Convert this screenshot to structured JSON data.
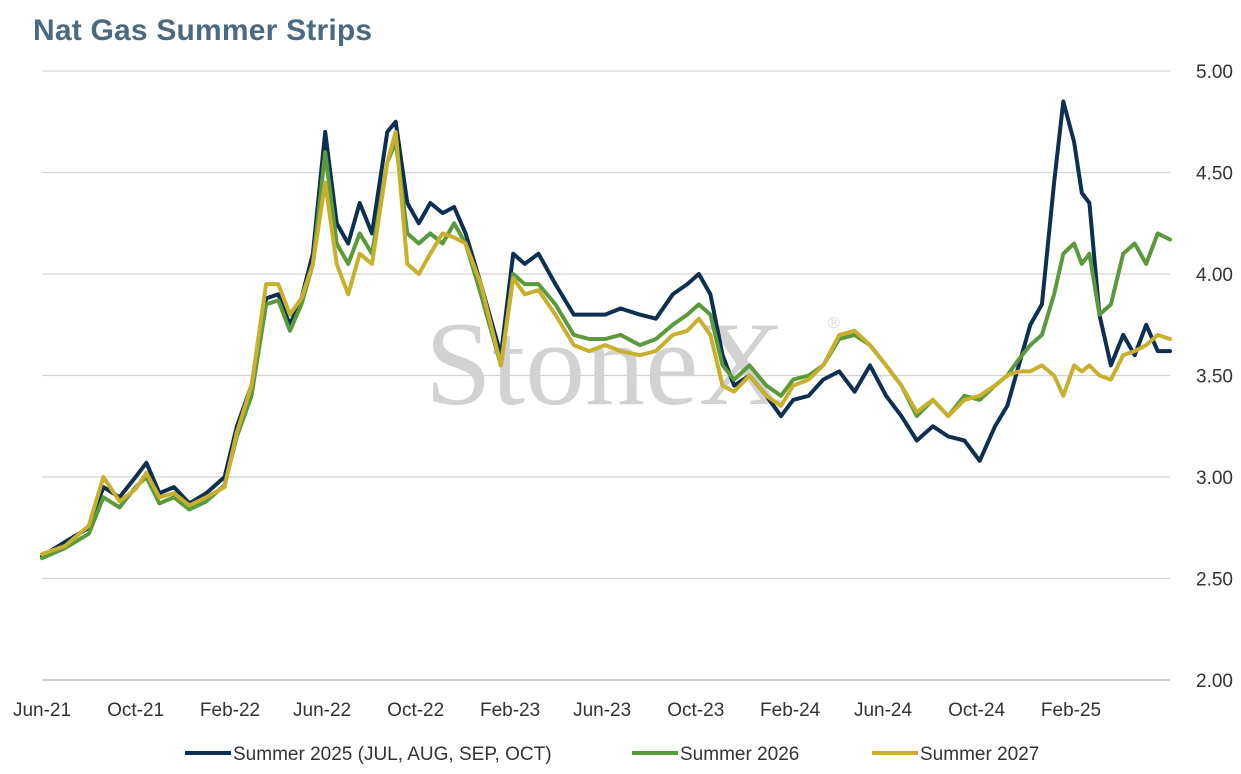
{
  "chart_data": {
    "type": "line",
    "title": "Nat Gas Summer Strips",
    "xlabel": "",
    "ylabel": "",
    "x_range": [
      "2021-06-01",
      "2025-06-10"
    ],
    "ylim": [
      2.0,
      5.0
    ],
    "y_ticks": [
      "2.00",
      "2.50",
      "3.00",
      "3.50",
      "4.00",
      "4.50",
      "5.00"
    ],
    "x_ticks": [
      {
        "date": "2021-06-01",
        "label": "Jun-21"
      },
      {
        "date": "2021-10-01",
        "label": "Oct-21"
      },
      {
        "date": "2022-02-01",
        "label": "Feb-22"
      },
      {
        "date": "2022-06-01",
        "label": "Jun-22"
      },
      {
        "date": "2022-10-01",
        "label": "Oct-22"
      },
      {
        "date": "2023-02-01",
        "label": "Feb-23"
      },
      {
        "date": "2023-06-01",
        "label": "Jun-23"
      },
      {
        "date": "2023-10-01",
        "label": "Oct-23"
      },
      {
        "date": "2024-02-01",
        "label": "Feb-24"
      },
      {
        "date": "2024-06-01",
        "label": "Jun-24"
      },
      {
        "date": "2024-10-01",
        "label": "Oct-24"
      },
      {
        "date": "2025-02-01",
        "label": "Feb-25"
      }
    ],
    "grid": "horizontal",
    "y_axis_position": "right",
    "legend_position": "bottom",
    "watermark": "StoneX",
    "watermark_mark": "®",
    "series": [
      {
        "name": "Summer 2025 (JUL, AUG, SEP, OCT)",
        "color": "#0d2f52",
        "points": [
          [
            "2021-06-01",
            2.61
          ],
          [
            "2021-07-01",
            2.68
          ],
          [
            "2021-08-01",
            2.75
          ],
          [
            "2021-08-20",
            2.95
          ],
          [
            "2021-09-10",
            2.9
          ],
          [
            "2021-10-01",
            3.0
          ],
          [
            "2021-10-15",
            3.07
          ],
          [
            "2021-11-01",
            2.92
          ],
          [
            "2021-11-20",
            2.95
          ],
          [
            "2021-12-10",
            2.87
          ],
          [
            "2022-01-01",
            2.92
          ],
          [
            "2022-01-25",
            3.0
          ],
          [
            "2022-02-10",
            3.25
          ],
          [
            "2022-03-01",
            3.45
          ],
          [
            "2022-03-20",
            3.88
          ],
          [
            "2022-04-05",
            3.9
          ],
          [
            "2022-04-20",
            3.75
          ],
          [
            "2022-05-05",
            3.88
          ],
          [
            "2022-05-20",
            4.1
          ],
          [
            "2022-06-05",
            4.7
          ],
          [
            "2022-06-20",
            4.25
          ],
          [
            "2022-07-05",
            4.15
          ],
          [
            "2022-07-20",
            4.35
          ],
          [
            "2022-08-05",
            4.2
          ],
          [
            "2022-08-25",
            4.7
          ],
          [
            "2022-09-05",
            4.75
          ],
          [
            "2022-09-20",
            4.35
          ],
          [
            "2022-10-05",
            4.25
          ],
          [
            "2022-10-20",
            4.35
          ],
          [
            "2022-11-05",
            4.3
          ],
          [
            "2022-11-20",
            4.33
          ],
          [
            "2022-12-05",
            4.2
          ],
          [
            "2022-12-25",
            3.95
          ],
          [
            "2023-01-20",
            3.6
          ],
          [
            "2023-02-05",
            4.1
          ],
          [
            "2023-02-20",
            4.05
          ],
          [
            "2023-03-10",
            4.1
          ],
          [
            "2023-04-01",
            3.95
          ],
          [
            "2023-04-25",
            3.8
          ],
          [
            "2023-05-15",
            3.8
          ],
          [
            "2023-06-05",
            3.8
          ],
          [
            "2023-06-25",
            3.83
          ],
          [
            "2023-07-20",
            3.8
          ],
          [
            "2023-08-10",
            3.78
          ],
          [
            "2023-09-01",
            3.9
          ],
          [
            "2023-09-20",
            3.95
          ],
          [
            "2023-10-05",
            4.0
          ],
          [
            "2023-10-20",
            3.9
          ],
          [
            "2023-11-05",
            3.6
          ],
          [
            "2023-11-20",
            3.45
          ],
          [
            "2023-12-10",
            3.5
          ],
          [
            "2024-01-01",
            3.4
          ],
          [
            "2024-01-20",
            3.3
          ],
          [
            "2024-02-05",
            3.38
          ],
          [
            "2024-02-25",
            3.4
          ],
          [
            "2024-03-15",
            3.48
          ],
          [
            "2024-04-05",
            3.52
          ],
          [
            "2024-04-25",
            3.42
          ],
          [
            "2024-05-15",
            3.55
          ],
          [
            "2024-06-05",
            3.4
          ],
          [
            "2024-06-25",
            3.3
          ],
          [
            "2024-07-15",
            3.18
          ],
          [
            "2024-08-05",
            3.25
          ],
          [
            "2024-08-25",
            3.2
          ],
          [
            "2024-09-15",
            3.18
          ],
          [
            "2024-10-05",
            3.08
          ],
          [
            "2024-10-25",
            3.25
          ],
          [
            "2024-11-10",
            3.35
          ],
          [
            "2024-11-25",
            3.55
          ],
          [
            "2024-12-10",
            3.75
          ],
          [
            "2024-12-25",
            3.85
          ],
          [
            "2025-01-10",
            4.45
          ],
          [
            "2025-01-22",
            4.85
          ],
          [
            "2025-02-05",
            4.65
          ],
          [
            "2025-02-15",
            4.4
          ],
          [
            "2025-02-25",
            4.35
          ],
          [
            "2025-03-10",
            3.8
          ],
          [
            "2025-03-25",
            3.55
          ],
          [
            "2025-04-10",
            3.7
          ],
          [
            "2025-04-25",
            3.6
          ],
          [
            "2025-05-10",
            3.75
          ],
          [
            "2025-05-25",
            3.62
          ],
          [
            "2025-06-10",
            3.62
          ]
        ]
      },
      {
        "name": "Summer 2026",
        "color": "#5a9a3c",
        "points": [
          [
            "2021-06-01",
            2.6
          ],
          [
            "2021-07-01",
            2.65
          ],
          [
            "2021-08-01",
            2.72
          ],
          [
            "2021-08-20",
            2.9
          ],
          [
            "2021-09-10",
            2.85
          ],
          [
            "2021-10-01",
            2.95
          ],
          [
            "2021-10-15",
            3.0
          ],
          [
            "2021-11-01",
            2.87
          ],
          [
            "2021-11-20",
            2.9
          ],
          [
            "2021-12-10",
            2.84
          ],
          [
            "2022-01-01",
            2.88
          ],
          [
            "2022-01-25",
            2.96
          ],
          [
            "2022-02-10",
            3.2
          ],
          [
            "2022-03-01",
            3.4
          ],
          [
            "2022-03-20",
            3.85
          ],
          [
            "2022-04-05",
            3.87
          ],
          [
            "2022-04-20",
            3.72
          ],
          [
            "2022-05-05",
            3.85
          ],
          [
            "2022-05-20",
            4.05
          ],
          [
            "2022-06-05",
            4.6
          ],
          [
            "2022-06-20",
            4.15
          ],
          [
            "2022-07-05",
            4.05
          ],
          [
            "2022-07-20",
            4.2
          ],
          [
            "2022-08-05",
            4.1
          ],
          [
            "2022-08-25",
            4.55
          ],
          [
            "2022-09-05",
            4.65
          ],
          [
            "2022-09-20",
            4.2
          ],
          [
            "2022-10-05",
            4.15
          ],
          [
            "2022-10-20",
            4.2
          ],
          [
            "2022-11-05",
            4.15
          ],
          [
            "2022-11-20",
            4.25
          ],
          [
            "2022-12-05",
            4.15
          ],
          [
            "2022-12-25",
            3.9
          ],
          [
            "2023-01-20",
            3.55
          ],
          [
            "2023-02-05",
            4.0
          ],
          [
            "2023-02-20",
            3.95
          ],
          [
            "2023-03-10",
            3.95
          ],
          [
            "2023-04-01",
            3.85
          ],
          [
            "2023-04-25",
            3.7
          ],
          [
            "2023-05-15",
            3.68
          ],
          [
            "2023-06-05",
            3.68
          ],
          [
            "2023-06-25",
            3.7
          ],
          [
            "2023-07-20",
            3.65
          ],
          [
            "2023-08-10",
            3.68
          ],
          [
            "2023-09-01",
            3.75
          ],
          [
            "2023-09-20",
            3.8
          ],
          [
            "2023-10-05",
            3.85
          ],
          [
            "2023-10-20",
            3.8
          ],
          [
            "2023-11-05",
            3.55
          ],
          [
            "2023-11-20",
            3.48
          ],
          [
            "2023-12-10",
            3.55
          ],
          [
            "2024-01-01",
            3.45
          ],
          [
            "2024-01-20",
            3.4
          ],
          [
            "2024-02-05",
            3.48
          ],
          [
            "2024-02-25",
            3.5
          ],
          [
            "2024-03-15",
            3.55
          ],
          [
            "2024-04-05",
            3.68
          ],
          [
            "2024-04-25",
            3.7
          ],
          [
            "2024-05-15",
            3.65
          ],
          [
            "2024-06-05",
            3.55
          ],
          [
            "2024-06-25",
            3.45
          ],
          [
            "2024-07-15",
            3.3
          ],
          [
            "2024-08-05",
            3.38
          ],
          [
            "2024-08-25",
            3.3
          ],
          [
            "2024-09-15",
            3.4
          ],
          [
            "2024-10-05",
            3.38
          ],
          [
            "2024-10-25",
            3.45
          ],
          [
            "2024-11-10",
            3.5
          ],
          [
            "2024-11-25",
            3.58
          ],
          [
            "2024-12-10",
            3.65
          ],
          [
            "2024-12-25",
            3.7
          ],
          [
            "2025-01-10",
            3.9
          ],
          [
            "2025-01-22",
            4.1
          ],
          [
            "2025-02-05",
            4.15
          ],
          [
            "2025-02-15",
            4.05
          ],
          [
            "2025-02-25",
            4.1
          ],
          [
            "2025-03-10",
            3.8
          ],
          [
            "2025-03-25",
            3.85
          ],
          [
            "2025-04-10",
            4.1
          ],
          [
            "2025-04-25",
            4.15
          ],
          [
            "2025-05-10",
            4.05
          ],
          [
            "2025-05-25",
            4.2
          ],
          [
            "2025-06-10",
            4.17
          ]
        ]
      },
      {
        "name": "Summer 2027",
        "color": "#c8b02c",
        "points": [
          [
            "2021-06-01",
            2.62
          ],
          [
            "2021-07-01",
            2.66
          ],
          [
            "2021-08-01",
            2.76
          ],
          [
            "2021-08-20",
            3.0
          ],
          [
            "2021-09-10",
            2.88
          ],
          [
            "2021-10-01",
            2.94
          ],
          [
            "2021-10-15",
            3.02
          ],
          [
            "2021-11-01",
            2.9
          ],
          [
            "2021-11-20",
            2.92
          ],
          [
            "2021-12-10",
            2.86
          ],
          [
            "2022-01-01",
            2.9
          ],
          [
            "2022-01-25",
            2.95
          ],
          [
            "2022-02-10",
            3.22
          ],
          [
            "2022-03-01",
            3.45
          ],
          [
            "2022-03-20",
            3.95
          ],
          [
            "2022-04-05",
            3.95
          ],
          [
            "2022-04-20",
            3.8
          ],
          [
            "2022-05-05",
            3.88
          ],
          [
            "2022-05-20",
            4.05
          ],
          [
            "2022-06-05",
            4.45
          ],
          [
            "2022-06-20",
            4.05
          ],
          [
            "2022-07-05",
            3.9
          ],
          [
            "2022-07-20",
            4.1
          ],
          [
            "2022-08-05",
            4.05
          ],
          [
            "2022-08-25",
            4.55
          ],
          [
            "2022-09-05",
            4.7
          ],
          [
            "2022-09-20",
            4.05
          ],
          [
            "2022-10-05",
            4.0
          ],
          [
            "2022-10-20",
            4.1
          ],
          [
            "2022-11-05",
            4.2
          ],
          [
            "2022-11-20",
            4.18
          ],
          [
            "2022-12-05",
            4.15
          ],
          [
            "2022-12-25",
            3.95
          ],
          [
            "2023-01-20",
            3.55
          ],
          [
            "2023-02-05",
            3.98
          ],
          [
            "2023-02-20",
            3.9
          ],
          [
            "2023-03-10",
            3.92
          ],
          [
            "2023-04-01",
            3.8
          ],
          [
            "2023-04-25",
            3.65
          ],
          [
            "2023-05-15",
            3.62
          ],
          [
            "2023-06-05",
            3.65
          ],
          [
            "2023-06-25",
            3.62
          ],
          [
            "2023-07-20",
            3.6
          ],
          [
            "2023-08-10",
            3.62
          ],
          [
            "2023-09-01",
            3.7
          ],
          [
            "2023-09-20",
            3.72
          ],
          [
            "2023-10-05",
            3.78
          ],
          [
            "2023-10-20",
            3.7
          ],
          [
            "2023-11-05",
            3.45
          ],
          [
            "2023-11-20",
            3.42
          ],
          [
            "2023-12-10",
            3.5
          ],
          [
            "2024-01-01",
            3.4
          ],
          [
            "2024-01-20",
            3.35
          ],
          [
            "2024-02-05",
            3.45
          ],
          [
            "2024-02-25",
            3.48
          ],
          [
            "2024-03-15",
            3.55
          ],
          [
            "2024-04-05",
            3.7
          ],
          [
            "2024-04-25",
            3.72
          ],
          [
            "2024-05-15",
            3.65
          ],
          [
            "2024-06-05",
            3.55
          ],
          [
            "2024-06-25",
            3.45
          ],
          [
            "2024-07-15",
            3.32
          ],
          [
            "2024-08-05",
            3.38
          ],
          [
            "2024-08-25",
            3.3
          ],
          [
            "2024-09-15",
            3.38
          ],
          [
            "2024-10-05",
            3.4
          ],
          [
            "2024-10-25",
            3.45
          ],
          [
            "2024-11-10",
            3.5
          ],
          [
            "2024-11-25",
            3.52
          ],
          [
            "2024-12-10",
            3.52
          ],
          [
            "2024-12-25",
            3.55
          ],
          [
            "2025-01-10",
            3.5
          ],
          [
            "2025-01-22",
            3.4
          ],
          [
            "2025-02-05",
            3.55
          ],
          [
            "2025-02-15",
            3.52
          ],
          [
            "2025-02-25",
            3.55
          ],
          [
            "2025-03-10",
            3.5
          ],
          [
            "2025-03-25",
            3.48
          ],
          [
            "2025-04-10",
            3.6
          ],
          [
            "2025-04-25",
            3.62
          ],
          [
            "2025-05-10",
            3.65
          ],
          [
            "2025-05-25",
            3.7
          ],
          [
            "2025-06-10",
            3.68
          ]
        ]
      }
    ]
  }
}
